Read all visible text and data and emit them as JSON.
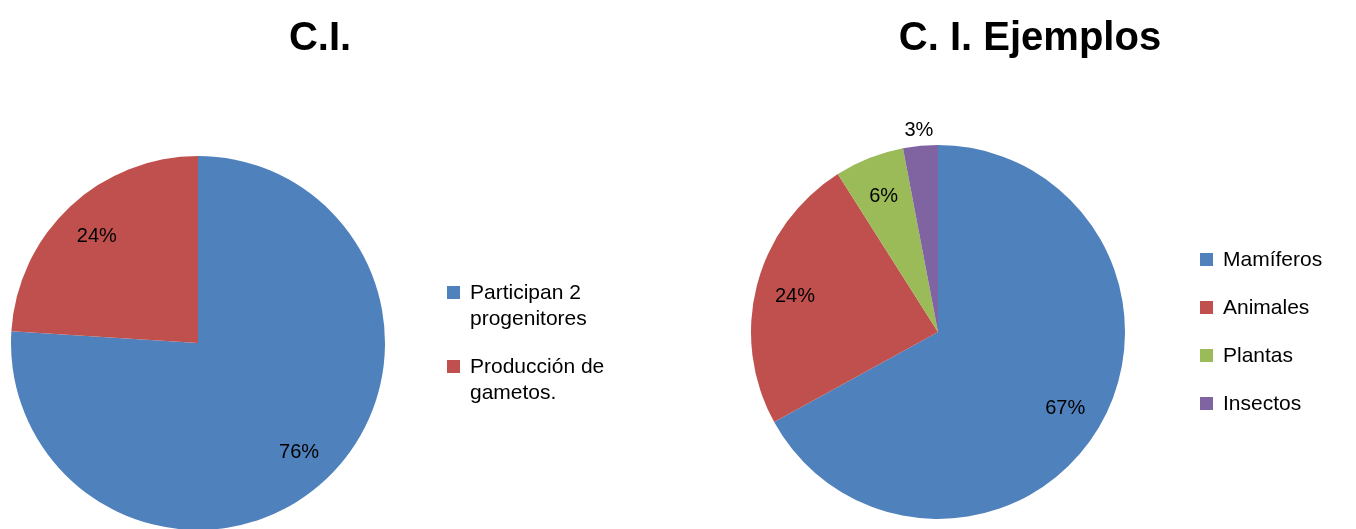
{
  "chart_data": [
    {
      "type": "pie",
      "title": "C.I.",
      "categories": [
        "Participan 2 progenitores",
        "Producción de gametos."
      ],
      "values": [
        76,
        24
      ],
      "colors": [
        "#4f81bd",
        "#c0504d"
      ],
      "value_labels": [
        "76%",
        "24%"
      ],
      "legend": "right"
    },
    {
      "type": "pie",
      "title": "C. I. Ejemplos",
      "categories": [
        "Mamíferos",
        "Animales",
        "Plantas",
        "Insectos"
      ],
      "values": [
        67,
        24,
        6,
        3
      ],
      "colors": [
        "#4f81bd",
        "#c0504d",
        "#9bbb59",
        "#8064a2"
      ],
      "value_labels": [
        "67%",
        "24%",
        "6%",
        "3%"
      ],
      "legend": "right"
    }
  ]
}
